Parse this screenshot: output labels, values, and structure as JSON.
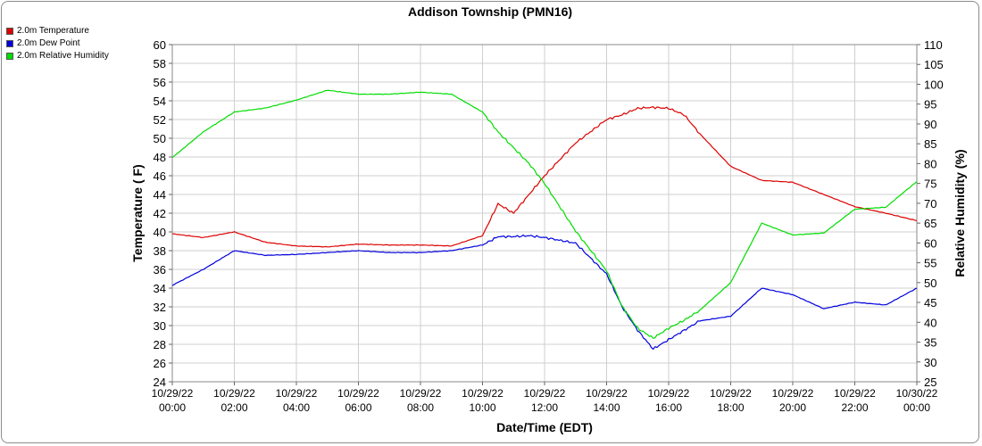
{
  "chart_data": {
    "type": "line",
    "title": "Addison Township (PMN16)",
    "xlabel": "Date/Time (EDT)",
    "ylabel": "Temperature ( F)",
    "y2label": "Relative Humidity (%)",
    "ylim": [
      24,
      60
    ],
    "y2lim": [
      25,
      110
    ],
    "x_ticks": [
      [
        "10/29/22",
        "00:00"
      ],
      [
        "10/29/22",
        "02:00"
      ],
      [
        "10/29/22",
        "04:00"
      ],
      [
        "10/29/22",
        "06:00"
      ],
      [
        "10/29/22",
        "08:00"
      ],
      [
        "10/29/22",
        "10:00"
      ],
      [
        "10/29/22",
        "12:00"
      ],
      [
        "10/29/22",
        "14:00"
      ],
      [
        "10/29/22",
        "16:00"
      ],
      [
        "10/29/22",
        "18:00"
      ],
      [
        "10/29/22",
        "20:00"
      ],
      [
        "10/29/22",
        "22:00"
      ],
      [
        "10/30/22",
        "00:00"
      ]
    ],
    "y_ticks": [
      24,
      26,
      28,
      30,
      32,
      34,
      36,
      38,
      40,
      42,
      44,
      46,
      48,
      50,
      52,
      54,
      56,
      58,
      60
    ],
    "y2_ticks": [
      25,
      30,
      35,
      40,
      45,
      50,
      55,
      60,
      65,
      70,
      75,
      80,
      85,
      90,
      95,
      100,
      105,
      110
    ],
    "grid": true,
    "legend_position": "top-left",
    "x": [
      "00:00",
      "01:00",
      "02:00",
      "03:00",
      "04:00",
      "05:00",
      "06:00",
      "07:00",
      "08:00",
      "09:00",
      "10:00",
      "10:30",
      "11:00",
      "11:30",
      "12:00",
      "13:00",
      "14:00",
      "14:30",
      "15:00",
      "15:30",
      "16:00",
      "16:30",
      "17:00",
      "18:00",
      "19:00",
      "20:00",
      "21:00",
      "22:00",
      "23:00",
      "24:00"
    ],
    "series": [
      {
        "name": "2.0m Temperature",
        "color": "#dd0000",
        "axis": "left",
        "values": [
          39.8,
          39.4,
          40.0,
          38.9,
          38.5,
          38.4,
          38.7,
          38.6,
          38.6,
          38.5,
          39.6,
          43.0,
          42.0,
          44.0,
          46.0,
          49.5,
          52.0,
          52.5,
          53.2,
          53.3,
          53.2,
          52.5,
          50.5,
          47.0,
          45.5,
          45.3,
          44.0,
          42.7,
          42.0,
          41.2
        ]
      },
      {
        "name": "2.0m Dew Point",
        "color": "#0000dd",
        "axis": "left",
        "values": [
          34.3,
          36.0,
          38.0,
          37.5,
          37.6,
          37.8,
          38.0,
          37.8,
          37.8,
          38.0,
          38.6,
          39.5,
          39.5,
          39.6,
          39.4,
          38.8,
          35.5,
          32.0,
          29.5,
          27.5,
          28.5,
          29.5,
          30.5,
          31.0,
          34.0,
          33.3,
          31.8,
          32.5,
          32.2,
          34.0
        ]
      },
      {
        "name": "2.0m Relative Humidity",
        "color": "#00dd00",
        "axis": "right",
        "values": [
          81.5,
          88.0,
          93.0,
          94.0,
          96.0,
          98.5,
          97.5,
          97.5,
          98.0,
          97.5,
          93.0,
          88.0,
          84.0,
          80.0,
          75.0,
          63.0,
          53.0,
          44.0,
          38.5,
          36.0,
          38.5,
          40.5,
          43.0,
          50.0,
          65.0,
          62.0,
          62.5,
          68.5,
          69.0,
          75.5
        ]
      }
    ]
  }
}
